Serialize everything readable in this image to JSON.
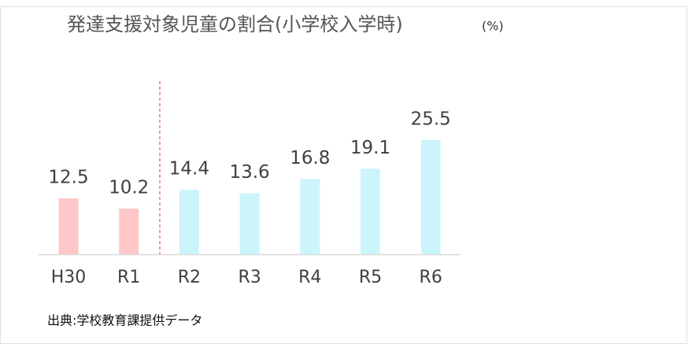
{
  "chart_data": {
    "type": "bar",
    "title": "発達支援対象児童の割合(小学校入学時)",
    "unit": "(%)",
    "source": "出典:学校教育課提供データ",
    "categories": [
      "H30",
      "R1",
      "R2",
      "R3",
      "R4",
      "R5",
      "R6"
    ],
    "values": [
      12.5,
      10.2,
      14.4,
      13.6,
      16.8,
      19.1,
      25.5
    ],
    "colors": [
      "#ffc7c7",
      "#ffc7c7",
      "#ccf5fb",
      "#ccf5fb",
      "#ccf5fb",
      "#ccf5fb",
      "#ccf5fb"
    ]
  }
}
